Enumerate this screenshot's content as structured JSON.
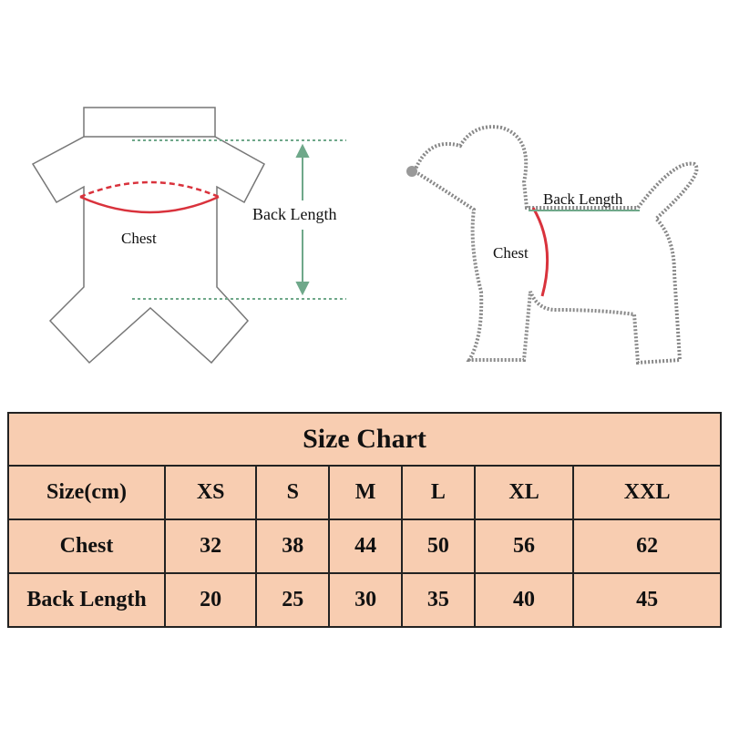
{
  "shirt_diagram": {
    "chest_label": "Chest",
    "back_length_label": "Back Length"
  },
  "dog_diagram": {
    "chest_label": "Chest",
    "back_length_label": "Back Length"
  },
  "colors": {
    "table_fill": "#f8cdb1",
    "chest_marker": "#d9323c",
    "back_length_marker": "#6fa88a"
  },
  "size_chart": {
    "title": "Size Chart",
    "header": [
      "Size(cm)",
      "XS",
      "S",
      "M",
      "L",
      "XL",
      "XXL"
    ],
    "rows": [
      [
        "Chest",
        "32",
        "38",
        "44",
        "50",
        "56",
        "62"
      ],
      [
        "Back Length",
        "20",
        "25",
        "30",
        "35",
        "40",
        "45"
      ]
    ]
  }
}
